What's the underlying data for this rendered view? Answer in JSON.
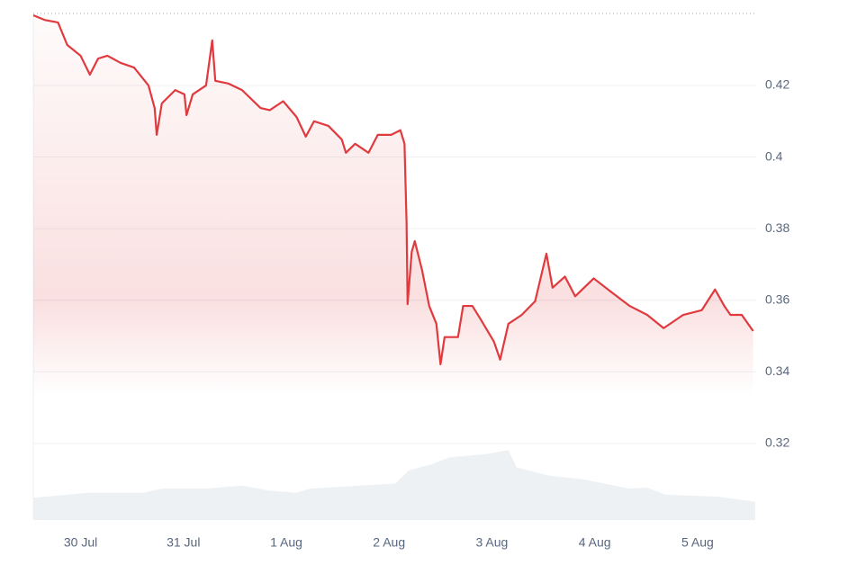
{
  "chart_data": {
    "type": "line",
    "x": [
      -0.46,
      -0.35,
      -0.22,
      -0.13,
      0,
      0.09,
      0.17,
      0.26,
      0.39,
      0.52,
      0.66,
      0.72,
      0.74,
      0.79,
      0.92,
      1.01,
      1.03,
      1.09,
      1.22,
      1.28,
      1.31,
      1.44,
      1.57,
      1.75,
      1.84,
      1.97,
      2.1,
      2.19,
      2.27,
      2.41,
      2.54,
      2.58,
      2.67,
      2.8,
      2.89,
      3.02,
      3.11,
      3.15,
      3.17,
      3.18,
      3.22,
      3.25,
      3.32,
      3.39,
      3.46,
      3.5,
      3.54,
      3.67,
      3.72,
      3.81,
      3.89,
      4.02,
      4.08,
      4.16,
      4.29,
      4.42,
      4.53,
      4.59,
      4.71,
      4.81,
      4.99,
      5.16,
      5.34,
      5.51,
      5.67,
      5.86,
      6.04,
      6.17,
      6.26,
      6.32,
      6.43,
      6.54
    ],
    "series": [
      {
        "color": "#e03a3e",
        "values": [
          0.4396,
          0.4383,
          0.4376,
          0.4313,
          0.4283,
          0.423,
          0.4275,
          0.4283,
          0.4263,
          0.425,
          0.42,
          0.4137,
          0.4062,
          0.415,
          0.4187,
          0.4175,
          0.4117,
          0.4175,
          0.42,
          0.4326,
          0.4213,
          0.4205,
          0.4187,
          0.4137,
          0.4131,
          0.4156,
          0.4112,
          0.4057,
          0.41,
          0.4087,
          0.4049,
          0.4012,
          0.4037,
          0.4012,
          0.4062,
          0.4062,
          0.4075,
          0.4037,
          0.3817,
          0.3589,
          0.3735,
          0.3765,
          0.3685,
          0.3584,
          0.3534,
          0.3421,
          0.3497,
          0.3497,
          0.3584,
          0.3584,
          0.3547,
          0.3484,
          0.3434,
          0.3534,
          0.3559,
          0.3597,
          0.373,
          0.3635,
          0.3666,
          0.3611,
          0.3661,
          0.3623,
          0.3584,
          0.3559,
          0.3522,
          0.3559,
          0.3572,
          0.363,
          0.3584,
          0.3559,
          0.3559,
          0.3514
        ]
      }
    ],
    "volume": {
      "color": "#eef1f4",
      "x": [
        -0.46,
        0.09,
        0.61,
        0.79,
        1.22,
        1.57,
        1.84,
        2.1,
        2.23,
        2.71,
        3.06,
        3.19,
        3.41,
        3.59,
        3.94,
        4.16,
        4.24,
        4.55,
        4.9,
        5.34,
        5.51,
        5.69,
        6.21,
        6.56
      ],
      "values": [
        22,
        27,
        27,
        31,
        31,
        34,
        29,
        27,
        31,
        34,
        36,
        49,
        55,
        62,
        65,
        69,
        52,
        44,
        40,
        31,
        32,
        25,
        23,
        18
      ],
      "y2lim": [
        0,
        500
      ]
    },
    "xlim": [
      -0.46,
      6.57
    ],
    "xticks": [
      {
        "value": 0,
        "label": "30 Jul"
      },
      {
        "value": 1,
        "label": "31 Jul"
      },
      {
        "value": 2,
        "label": "1 Aug"
      },
      {
        "value": 3,
        "label": "2 Aug"
      },
      {
        "value": 4,
        "label": "3 Aug"
      },
      {
        "value": 5,
        "label": "4 Aug"
      },
      {
        "value": 6,
        "label": "5 Aug"
      }
    ],
    "ylim": [
      0.2986,
      0.4401
    ],
    "yticks": [
      0.32,
      0.34,
      0.36,
      0.38,
      0.4,
      0.42
    ],
    "grid": true
  }
}
